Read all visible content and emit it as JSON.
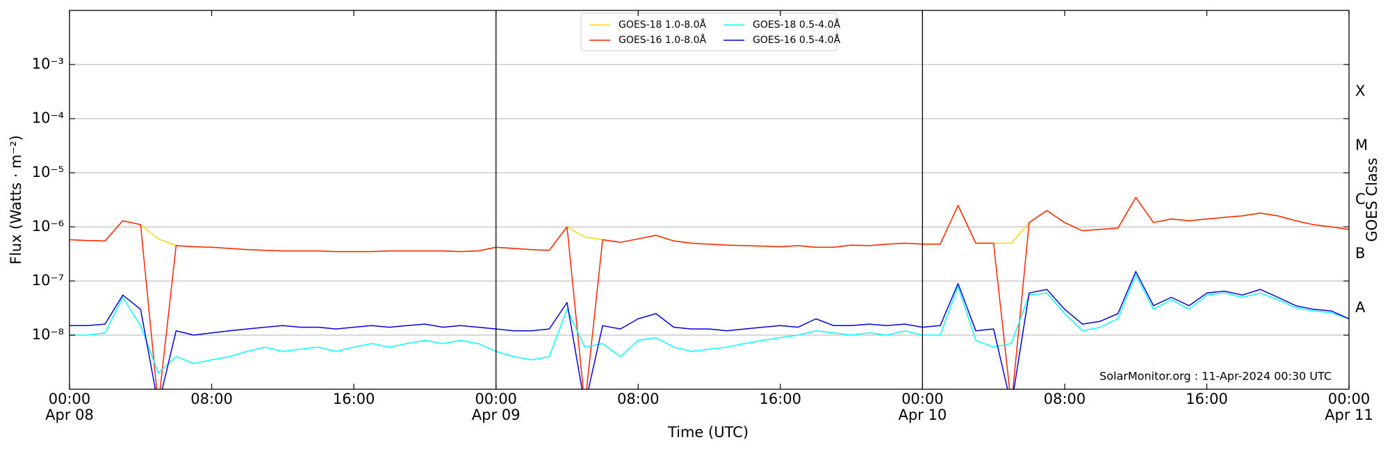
{
  "chart_data": {
    "type": "line",
    "xlabel": "Time (UTC)",
    "ylabel": "Flux (Watts · m⁻²)",
    "y2label": "GOES Class",
    "log_y": true,
    "grid": true,
    "legend": "upper center",
    "annotation": "SolarMonitor.org : 11-Apr-2024 00:30 UTC",
    "xlim": [
      0,
      72
    ],
    "xticks": [
      {
        "value": 0,
        "label": "00:00"
      },
      {
        "value": 8,
        "label": "08:00"
      },
      {
        "value": 16,
        "label": "16:00"
      },
      {
        "value": 24,
        "label": "00:00"
      },
      {
        "value": 32,
        "label": "08:00"
      },
      {
        "value": 40,
        "label": "16:00"
      },
      {
        "value": 48,
        "label": "00:00"
      },
      {
        "value": 56,
        "label": "08:00"
      },
      {
        "value": 64,
        "label": "16:00"
      },
      {
        "value": 72,
        "label": "00:00"
      }
    ],
    "date_labels": [
      {
        "value": 0,
        "label": "Apr 08"
      },
      {
        "value": 24,
        "label": "Apr 09"
      },
      {
        "value": 48,
        "label": "Apr 10"
      },
      {
        "value": 72,
        "label": "Apr 11"
      }
    ],
    "vlines": [
      24,
      48
    ],
    "ylim": [
      1e-09,
      0.01
    ],
    "yticks": [
      {
        "value": 1e-08,
        "label": "10⁻⁸"
      },
      {
        "value": 1e-07,
        "label": "10⁻⁷"
      },
      {
        "value": 1e-06,
        "label": "10⁻⁶"
      },
      {
        "value": 1e-05,
        "label": "10⁻⁵"
      },
      {
        "value": 0.0001,
        "label": "10⁻⁴"
      },
      {
        "value": 0.001,
        "label": "10⁻³"
      }
    ],
    "y2lim": [
      1e-09,
      0.01
    ],
    "y2ticks": [
      {
        "value": 3.16e-08,
        "label": "A"
      },
      {
        "value": 3.16e-07,
        "label": "B"
      },
      {
        "value": 3.16e-06,
        "label": "C"
      },
      {
        "value": 3.16e-05,
        "label": "M"
      },
      {
        "value": 0.000316,
        "label": "X"
      }
    ],
    "x": [
      0,
      1,
      2,
      3,
      4,
      5,
      6,
      7,
      8,
      9,
      10,
      11,
      12,
      13,
      14,
      15,
      16,
      17,
      18,
      19,
      20,
      21,
      22,
      23,
      24,
      25,
      26,
      27,
      28,
      29,
      30,
      31,
      32,
      33,
      34,
      35,
      36,
      37,
      38,
      39,
      40,
      41,
      42,
      43,
      44,
      45,
      46,
      47,
      48,
      49,
      50,
      51,
      52,
      53,
      54,
      55,
      56,
      57,
      58,
      59,
      60,
      61,
      62,
      63,
      64,
      65,
      66,
      67,
      68,
      69,
      70,
      71,
      72
    ],
    "series": [
      {
        "name": "GOES-18 1.0-8.0Å",
        "color": "#ffd700",
        "values": [
          5.8e-07,
          5.6e-07,
          5.5e-07,
          1.3e-06,
          1.1e-06,
          6e-07,
          4.5e-07,
          4.3e-07,
          4.2e-07,
          4e-07,
          3.8e-07,
          3.7e-07,
          3.6e-07,
          3.6e-07,
          3.6e-07,
          3.5e-07,
          3.5e-07,
          3.5e-07,
          3.6e-07,
          3.6e-07,
          3.6e-07,
          3.6e-07,
          3.5e-07,
          3.6e-07,
          4.2e-07,
          4e-07,
          3.8e-07,
          3.7e-07,
          1e-06,
          6.5e-07,
          5.8e-07,
          5.2e-07,
          6e-07,
          7e-07,
          5.5e-07,
          5e-07,
          4.8e-07,
          4.6e-07,
          4.5e-07,
          4.4e-07,
          4.3e-07,
          4.5e-07,
          4.2e-07,
          4.2e-07,
          4.6e-07,
          4.5e-07,
          4.8e-07,
          5e-07,
          4.8e-07,
          4.8e-07,
          2.5e-06,
          5e-07,
          5e-07,
          5e-07,
          1.2e-06,
          2e-06,
          1.2e-06,
          8.5e-07,
          9e-07,
          9.5e-07,
          3.5e-06,
          1.2e-06,
          1.4e-06,
          1.3e-06,
          1.4e-06,
          1.5e-06,
          1.6e-06,
          1.8e-06,
          1.6e-06,
          1.3e-06,
          1.1e-06,
          1e-06,
          9e-07
        ]
      },
      {
        "name": "GOES-16 1.0-8.0Å",
        "color": "#ff2000",
        "values": [
          5.8e-07,
          5.6e-07,
          5.5e-07,
          1.3e-06,
          1.1e-06,
          5e-10,
          4.5e-07,
          4.3e-07,
          4.2e-07,
          4e-07,
          3.8e-07,
          3.7e-07,
          3.6e-07,
          3.6e-07,
          3.6e-07,
          3.5e-07,
          3.5e-07,
          3.5e-07,
          3.6e-07,
          3.6e-07,
          3.6e-07,
          3.6e-07,
          3.5e-07,
          3.6e-07,
          4.2e-07,
          4e-07,
          3.8e-07,
          3.7e-07,
          1e-06,
          5e-10,
          5.8e-07,
          5.2e-07,
          6e-07,
          7e-07,
          5.5e-07,
          5e-07,
          4.8e-07,
          4.6e-07,
          4.5e-07,
          4.4e-07,
          4.3e-07,
          4.5e-07,
          4.2e-07,
          4.2e-07,
          4.6e-07,
          4.5e-07,
          4.8e-07,
          5e-07,
          4.8e-07,
          4.8e-07,
          2.5e-06,
          5e-07,
          5e-07,
          5e-10,
          1.2e-06,
          2e-06,
          1.2e-06,
          8.5e-07,
          9e-07,
          9.5e-07,
          3.5e-06,
          1.2e-06,
          1.4e-06,
          1.3e-06,
          1.4e-06,
          1.5e-06,
          1.6e-06,
          1.8e-06,
          1.6e-06,
          1.3e-06,
          1.1e-06,
          1e-06,
          9e-07
        ]
      },
      {
        "name": "GOES-18 0.5-4.0Å",
        "color": "#00ffff",
        "values": [
          1e-08,
          1e-08,
          1.1e-08,
          5e-08,
          1.5e-08,
          2e-09,
          4e-09,
          3e-09,
          3.5e-09,
          4e-09,
          5e-09,
          6e-09,
          5e-09,
          5.5e-09,
          6e-09,
          5e-09,
          6e-09,
          7e-09,
          6e-09,
          7e-09,
          8e-09,
          7e-09,
          8e-09,
          7e-09,
          5e-09,
          4e-09,
          3.5e-09,
          4e-09,
          3e-08,
          6e-09,
          7e-09,
          4e-09,
          8e-09,
          9e-09,
          6e-09,
          5e-09,
          5.5e-09,
          6e-09,
          7e-09,
          8e-09,
          9e-09,
          1e-08,
          1.2e-08,
          1.1e-08,
          1e-08,
          1.1e-08,
          1e-08,
          1.2e-08,
          1e-08,
          1e-08,
          8e-08,
          8e-09,
          6e-09,
          7e-09,
          5.5e-08,
          6e-08,
          2.5e-08,
          1.2e-08,
          1.4e-08,
          2e-08,
          1.3e-07,
          3e-08,
          4.5e-08,
          3e-08,
          5.5e-08,
          6e-08,
          5e-08,
          6e-08,
          4.5e-08,
          3.2e-08,
          2.8e-08,
          2.6e-08,
          2e-08
        ]
      },
      {
        "name": "GOES-16 0.5-4.0Å",
        "color": "#0000dd",
        "values": [
          1.5e-08,
          1.5e-08,
          1.6e-08,
          5.5e-08,
          3e-08,
          5e-10,
          1.2e-08,
          1e-08,
          1.1e-08,
          1.2e-08,
          1.3e-08,
          1.4e-08,
          1.5e-08,
          1.4e-08,
          1.4e-08,
          1.3e-08,
          1.4e-08,
          1.5e-08,
          1.4e-08,
          1.5e-08,
          1.6e-08,
          1.4e-08,
          1.5e-08,
          1.4e-08,
          1.3e-08,
          1.2e-08,
          1.2e-08,
          1.3e-08,
          4e-08,
          5e-10,
          1.5e-08,
          1.3e-08,
          2e-08,
          2.5e-08,
          1.4e-08,
          1.3e-08,
          1.3e-08,
          1.2e-08,
          1.3e-08,
          1.4e-08,
          1.5e-08,
          1.4e-08,
          2e-08,
          1.5e-08,
          1.5e-08,
          1.6e-08,
          1.5e-08,
          1.6e-08,
          1.4e-08,
          1.5e-08,
          9e-08,
          1.2e-08,
          1.3e-08,
          5e-10,
          6e-08,
          7e-08,
          3e-08,
          1.6e-08,
          1.8e-08,
          2.5e-08,
          1.5e-07,
          3.5e-08,
          5e-08,
          3.5e-08,
          6e-08,
          6.5e-08,
          5.5e-08,
          7e-08,
          5e-08,
          3.5e-08,
          3e-08,
          2.8e-08,
          2e-08
        ]
      }
    ]
  }
}
